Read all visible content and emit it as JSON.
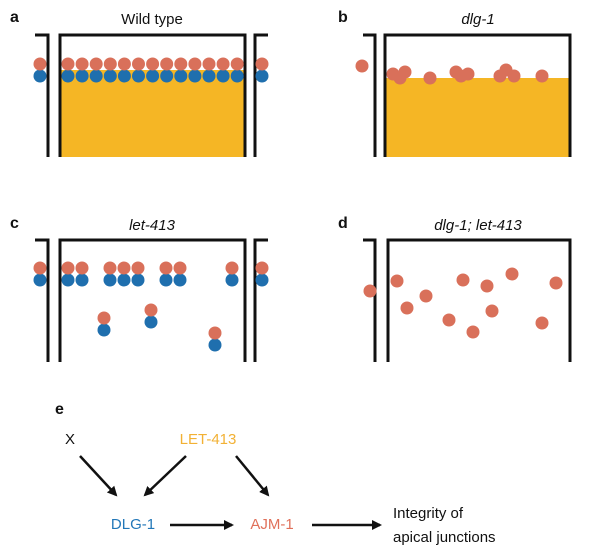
{
  "panels": [
    {
      "letter": "a",
      "title": "Wild type"
    },
    {
      "letter": "b",
      "title": "dlg-1"
    },
    {
      "letter": "c",
      "title": "let-413"
    },
    {
      "letter": "d",
      "title": "dlg-1; let-413"
    }
  ],
  "pathway": {
    "letter": "e",
    "nodes": [
      {
        "label": "X"
      },
      {
        "label": "LET-413"
      },
      {
        "label": "DLG-1"
      },
      {
        "label": "AJM-1"
      },
      {
        "label": "Integrity of"
      },
      {
        "label": "apical junctions"
      }
    ]
  }
}
